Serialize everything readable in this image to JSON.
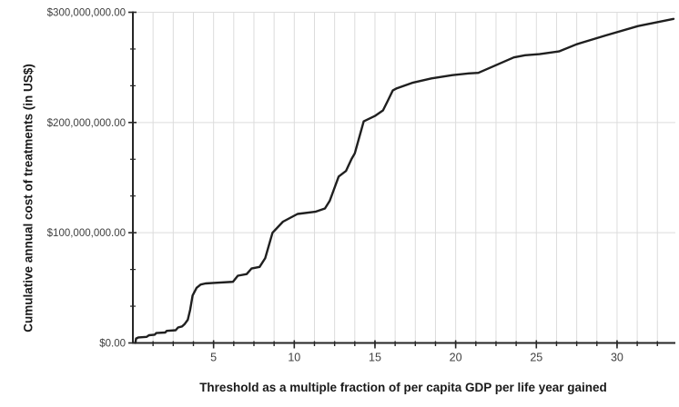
{
  "figure": {
    "background": "#ffffff"
  },
  "chart_data": {
    "type": "line",
    "title": "",
    "xlabel": "Threshold as a multiple fraction of per capita GDP per life year gained",
    "ylabel": "Cumulative annual cost of treatments (in US$)",
    "xlim": [
      0,
      33.5
    ],
    "ylim": [
      0,
      300000000
    ],
    "x_tick_values": [
      5,
      10,
      15,
      20,
      25,
      30
    ],
    "x_tick_labels": [
      "5",
      "10",
      "15",
      "20",
      "25",
      "30"
    ],
    "x_minor_tick_interval": 1.25,
    "y_tick_values": [
      0,
      100000000,
      200000000,
      300000000
    ],
    "y_tick_labels": [
      "$0.00",
      "$100,000,000.00",
      "$200,000,000.00",
      "$300,000,000.00"
    ],
    "y_minor_tick_interval": 33333333,
    "grid": {
      "vertical": "every 1.25 units",
      "horizontal": "major only (100M steps)"
    },
    "legend_position": "none",
    "series": [
      {
        "name": "cumulative_annual_cost",
        "points": [
          [
            0.15,
            0
          ],
          [
            0.2,
            4000000
          ],
          [
            0.35,
            5000000
          ],
          [
            0.85,
            5500000
          ],
          [
            1.0,
            7000000
          ],
          [
            1.35,
            7500000
          ],
          [
            1.45,
            9000000
          ],
          [
            2.0,
            9500000
          ],
          [
            2.1,
            11000000
          ],
          [
            2.65,
            11500000
          ],
          [
            2.8,
            14000000
          ],
          [
            3.05,
            15000000
          ],
          [
            3.2,
            17000000
          ],
          [
            3.4,
            21000000
          ],
          [
            3.55,
            30000000
          ],
          [
            3.7,
            43000000
          ],
          [
            3.95,
            50000000
          ],
          [
            4.2,
            53000000
          ],
          [
            4.5,
            54000000
          ],
          [
            5.0,
            54500000
          ],
          [
            6.2,
            55500000
          ],
          [
            6.5,
            61000000
          ],
          [
            7.05,
            62500000
          ],
          [
            7.35,
            67500000
          ],
          [
            7.85,
            69000000
          ],
          [
            8.2,
            77000000
          ],
          [
            8.65,
            100000000
          ],
          [
            9.3,
            110000000
          ],
          [
            10.2,
            117000000
          ],
          [
            11.3,
            119000000
          ],
          [
            11.9,
            122000000
          ],
          [
            12.2,
            129000000
          ],
          [
            12.75,
            151000000
          ],
          [
            13.2,
            156000000
          ],
          [
            13.55,
            167000000
          ],
          [
            13.75,
            172000000
          ],
          [
            14.3,
            201000000
          ],
          [
            15.0,
            206000000
          ],
          [
            15.5,
            211000000
          ],
          [
            15.8,
            220000000
          ],
          [
            16.1,
            229000000
          ],
          [
            16.35,
            231000000
          ],
          [
            17.3,
            236000000
          ],
          [
            18.5,
            240000000
          ],
          [
            19.8,
            243000000
          ],
          [
            20.8,
            244500000
          ],
          [
            21.4,
            245000000
          ],
          [
            23.6,
            259000000
          ],
          [
            24.3,
            261000000
          ],
          [
            25.2,
            262000000
          ],
          [
            26.4,
            264500000
          ],
          [
            27.5,
            271000000
          ],
          [
            29.3,
            279000000
          ],
          [
            31.3,
            287500000
          ],
          [
            33.5,
            294000000
          ]
        ]
      }
    ],
    "colors": {
      "line": "#1f1f1f",
      "grid": "#dcdcdc",
      "axis": "#262626",
      "tick_text": "#404040",
      "title_text": "#1a1a1a"
    }
  }
}
